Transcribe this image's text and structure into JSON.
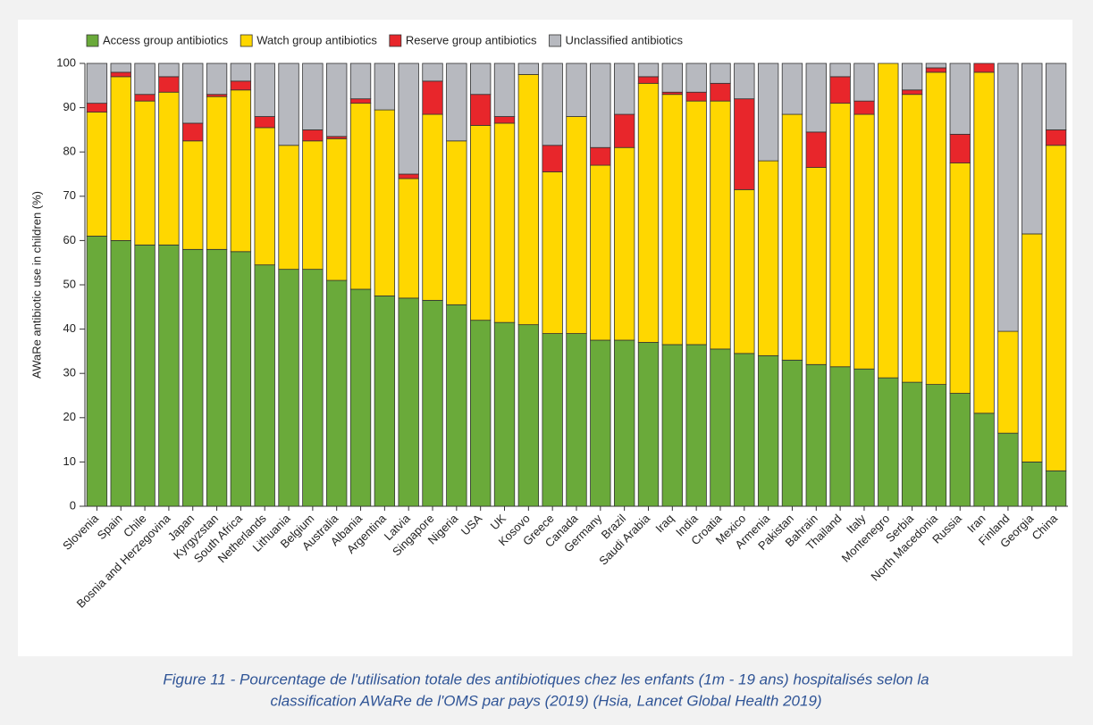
{
  "chart_data": {
    "type": "stacked_bar",
    "y_label": "AWaRe antibiotic use in children (%)",
    "categories": [
      "Slovenia",
      "Spain",
      "Chile",
      "Bosnia and Herzegovina",
      "Japan",
      "Kyrgyzstan",
      "South Africa",
      "Netherlands",
      "Lithuania",
      "Belgium",
      "Australia",
      "Albania",
      "Argentina",
      "Latvia",
      "Singapore",
      "Nigeria",
      "USA",
      "UK",
      "Kosovo",
      "Greece",
      "Canada",
      "Germany",
      "Brazil",
      "Saudi Arabia",
      "Iraq",
      "India",
      "Croatia",
      "Mexico",
      "Armenia",
      "Pakistan",
      "Bahrain",
      "Thailand",
      "Italy",
      "Montenegro",
      "Serbia",
      "North Macedonia",
      "Russia",
      "Iran",
      "Finland",
      "Georgia",
      "China"
    ],
    "series": [
      {
        "name": "Access group antibiotics",
        "color": "#6aaa3a",
        "values": [
          61,
          60,
          59,
          59,
          58,
          58,
          57.5,
          54.5,
          53.5,
          53.5,
          51,
          49,
          47.5,
          47,
          46.5,
          45.5,
          42,
          41.5,
          41,
          39,
          39,
          37.5,
          37.5,
          37,
          36.5,
          36.5,
          35.5,
          34.5,
          34,
          33,
          32,
          31.5,
          31,
          29,
          28,
          27.5,
          25.5,
          21,
          16.5,
          10,
          8
        ]
      },
      {
        "name": "Watch group antibiotics",
        "color": "#ffd700",
        "values": [
          28,
          37,
          32.5,
          34.5,
          24.5,
          34.5,
          36.5,
          31,
          28,
          29,
          32,
          42,
          42,
          27,
          42,
          37,
          44,
          45,
          56.5,
          36.5,
          49,
          39.5,
          43.5,
          58.5,
          56.5,
          55,
          56,
          37,
          44,
          55.5,
          44.5,
          59.5,
          57.5,
          71,
          65,
          70.5,
          52,
          77,
          23,
          51.5,
          73.5
        ]
      },
      {
        "name": "Reserve group antibiotics",
        "color": "#e8262b",
        "values": [
          2,
          1,
          1.5,
          3.5,
          4,
          0.5,
          2,
          2.5,
          0,
          2.5,
          0.5,
          1,
          0,
          1,
          7.5,
          0,
          7,
          1.5,
          0,
          6,
          0,
          4,
          7.5,
          1.5,
          0.5,
          2,
          4,
          20.5,
          0,
          0,
          8,
          6,
          3,
          0,
          1,
          1,
          6.5,
          2,
          0,
          0,
          3.5
        ]
      },
      {
        "name": "Unclassified antibiotics",
        "color": "#b7b9bf",
        "values": [
          9,
          2,
          7,
          3,
          13.5,
          7,
          4,
          12,
          18.5,
          15,
          16.5,
          8,
          10.5,
          25,
          4,
          17.5,
          7,
          12,
          2.5,
          18.5,
          12,
          19,
          11.5,
          3,
          6.5,
          6.5,
          4.5,
          8,
          22,
          11.5,
          15.5,
          3,
          8.5,
          0,
          6,
          1,
          16,
          0,
          60.5,
          38.5,
          15
        ]
      }
    ],
    "ylim": [
      0,
      100
    ],
    "yticks": [
      0,
      10,
      20,
      30,
      40,
      50,
      60,
      70,
      80,
      90,
      100
    ],
    "legend": "top"
  },
  "caption": [
    "Figure 11 - Pourcentage de l'utilisation totale des antibiotiques chez les enfants (1m - 19 ans) hospitalisés selon la",
    "classification AWaRe de l'OMS par pays (2019) (Hsia, Lancet Global Health 2019)"
  ]
}
